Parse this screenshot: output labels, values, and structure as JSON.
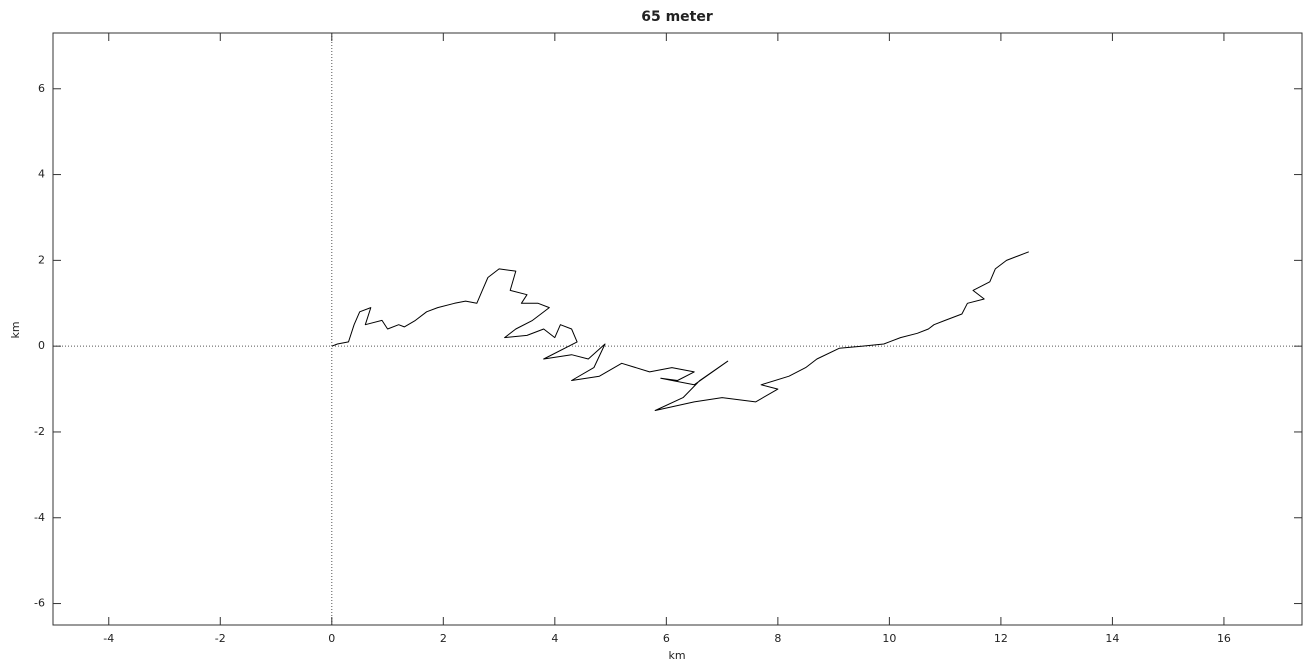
{
  "chart_data": {
    "type": "line",
    "title": "65 meter",
    "x_label": "km",
    "y_label": "km",
    "x": [
      0,
      0.1,
      0.3,
      0.4,
      0.5,
      0.7,
      0.6,
      0.9,
      1.0,
      1.2,
      1.3,
      1.5,
      1.7,
      1.9,
      2.2,
      2.4,
      2.6,
      2.7,
      2.8,
      3.0,
      3.3,
      3.2,
      3.5,
      3.4,
      3.7,
      3.9,
      3.6,
      3.3,
      3.1,
      3.5,
      3.8,
      4.0,
      4.1,
      4.3,
      4.4,
      3.8,
      4.3,
      4.6,
      4.9,
      4.7,
      4.3,
      4.8,
      5.2,
      5.7,
      6.1,
      6.5,
      6.2,
      5.9,
      6.5,
      7.1,
      6.6,
      6.3,
      5.8,
      6.5,
      7.0,
      7.6,
      8.0,
      7.7,
      8.2,
      8.5,
      8.7,
      9.1,
      9.5,
      9.9,
      10.2,
      10.5,
      10.7,
      10.8,
      11.0,
      11.3,
      11.4,
      11.7,
      11.5,
      11.8,
      11.9,
      12.1,
      12.3,
      12.5
    ],
    "values": [
      0,
      0.05,
      0.1,
      0.5,
      0.8,
      0.9,
      0.5,
      0.6,
      0.4,
      0.5,
      0.45,
      0.6,
      0.8,
      0.9,
      1.0,
      1.05,
      1.0,
      1.3,
      1.6,
      1.8,
      1.75,
      1.3,
      1.2,
      1.0,
      1.0,
      0.9,
      0.6,
      0.4,
      0.2,
      0.25,
      0.4,
      0.2,
      0.5,
      0.4,
      0.1,
      -0.3,
      -0.2,
      -0.3,
      0.05,
      -0.5,
      -0.8,
      -0.7,
      -0.4,
      -0.6,
      -0.5,
      -0.6,
      -0.8,
      -0.75,
      -0.9,
      -0.35,
      -0.8,
      -1.2,
      -1.5,
      -1.3,
      -1.2,
      -1.3,
      -1.0,
      -0.9,
      -0.7,
      -0.5,
      -0.3,
      -0.05,
      0.0,
      0.05,
      0.2,
      0.3,
      0.4,
      0.5,
      0.6,
      0.75,
      1.0,
      1.1,
      1.3,
      1.5,
      1.8,
      2.0,
      2.1,
      2.2
    ],
    "color": "#000000",
    "xlim": [
      -5,
      17.4
    ],
    "ylim": [
      -6.5,
      7.3
    ],
    "xticks": [
      -4,
      -2,
      0,
      2,
      4,
      6,
      8,
      10,
      12,
      14,
      16
    ],
    "yticks": [
      -6,
      -4,
      -2,
      0,
      2,
      4,
      6
    ]
  }
}
